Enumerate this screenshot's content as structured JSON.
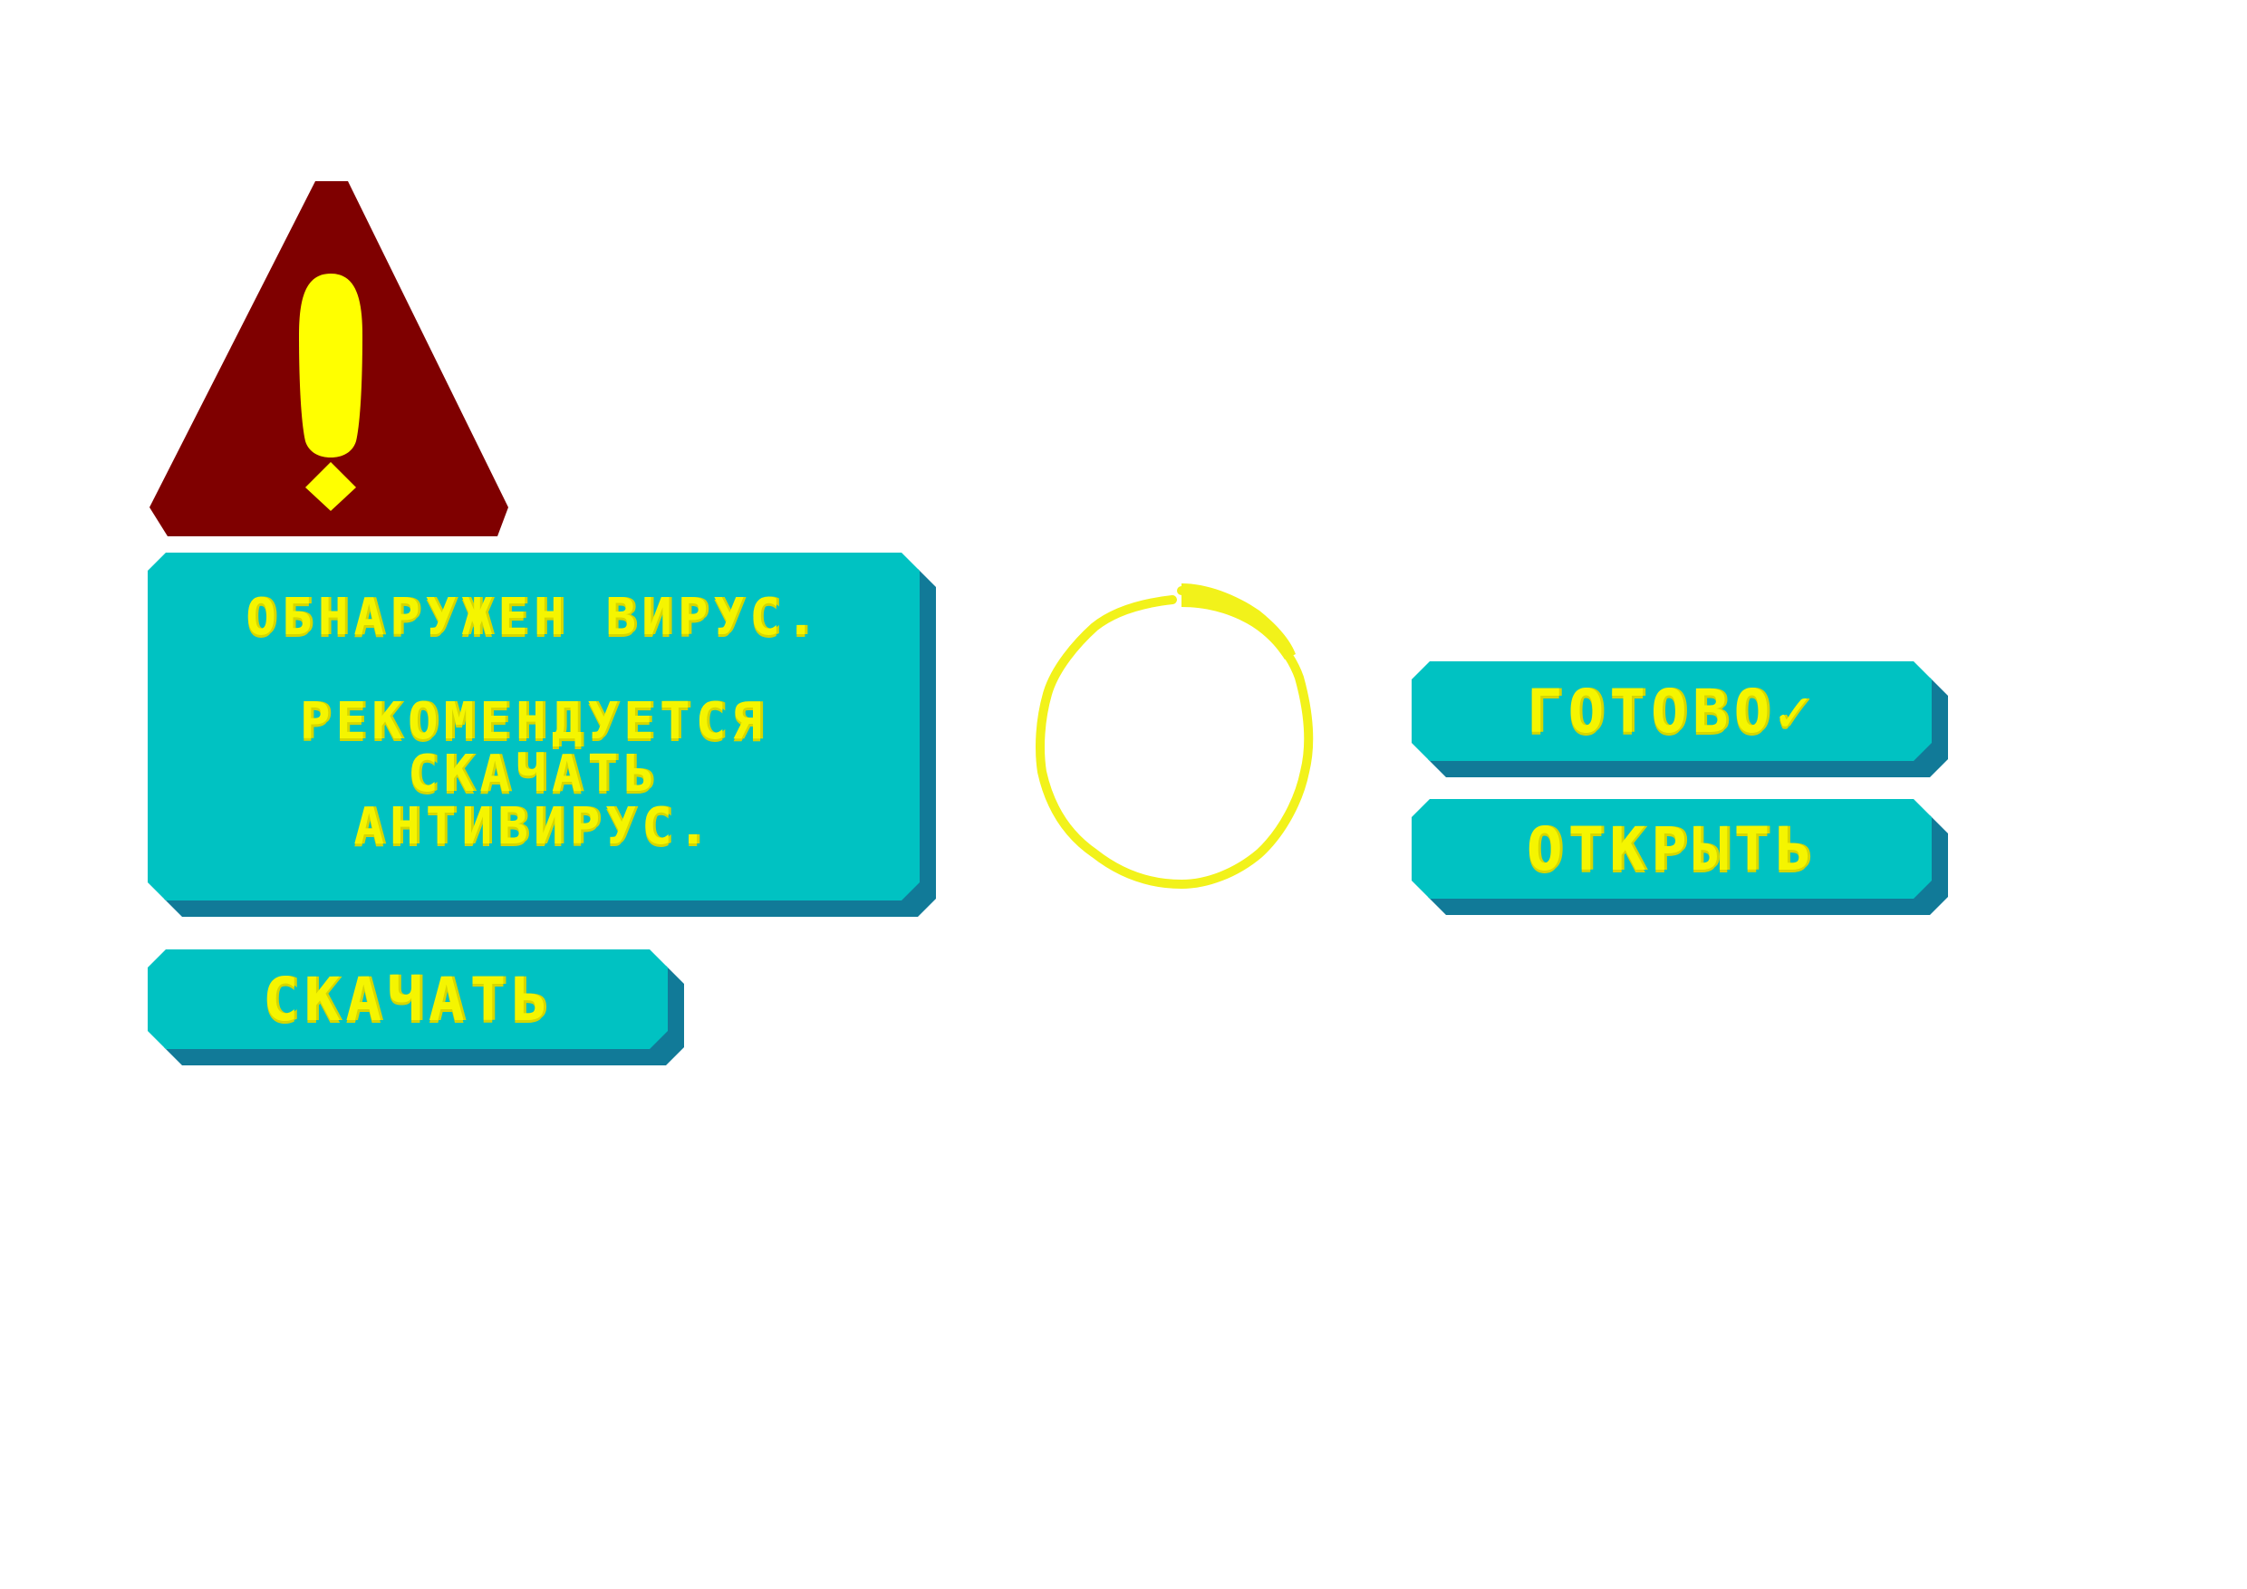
{
  "colors": {
    "panel_face": "#00c2c2",
    "panel_shadow": "#117a98",
    "text": "#f5f500",
    "warning_triangle": "#7f0000",
    "warning_mark": "#ffff00",
    "spinner": "#f2f21a"
  },
  "icons": {
    "warning": "warning-triangle-icon",
    "spinner": "loading-spinner-icon"
  },
  "alert": {
    "title": "ОБНАРУЖЕН ВИРУС.",
    "body_lines": [
      "РЕКОМЕНДУЕТСЯ",
      "СКАЧАТЬ",
      "АНТИВИРУС."
    ]
  },
  "buttons": {
    "download_label": "СКАЧАТЬ",
    "done_label": "ГОТОВО✓",
    "open_label": "ОТКРЫТЬ"
  }
}
